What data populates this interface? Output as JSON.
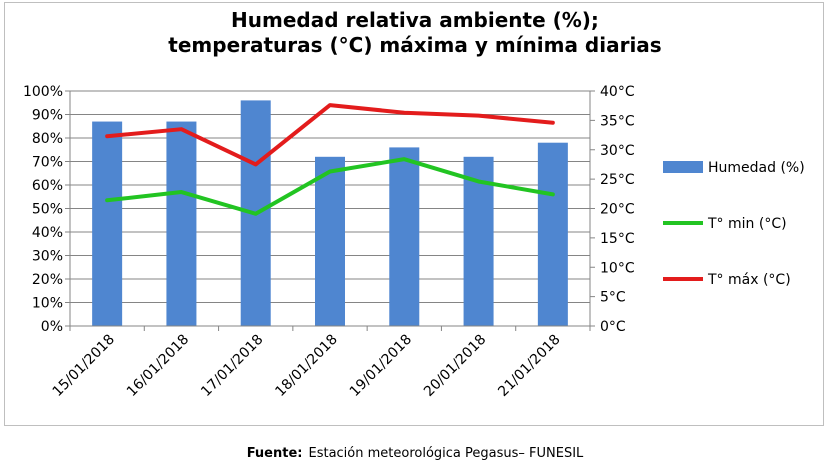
{
  "chart_data": {
    "type": "bar",
    "title_lines": [
      "Humedad relativa ambiente (%);",
      "temperaturas (°C) máxima y mínima diarias"
    ],
    "categories": [
      "15/01/2018",
      "16/01/2018",
      "17/01/2018",
      "18/01/2018",
      "19/01/2018",
      "20/01/2018",
      "21/01/2018"
    ],
    "y_left": {
      "ylim": [
        0,
        100
      ],
      "ticks": [
        "0%",
        "10%",
        "20%",
        "30%",
        "40%",
        "50%",
        "60%",
        "70%",
        "80%",
        "90%",
        "100%"
      ]
    },
    "y_right": {
      "ylim": [
        0,
        40
      ],
      "ticks": [
        "0°C",
        "5°C",
        "10°C",
        "15°C",
        "20°C",
        "25°C",
        "30°C",
        "35°C",
        "40°C"
      ]
    },
    "grid": true,
    "legend_position": "right",
    "series": [
      {
        "name": "Humedad (%)",
        "type": "bar",
        "axis": "left",
        "color": "#4f86d0",
        "values": [
          87,
          87,
          96,
          72,
          76,
          72,
          78
        ]
      },
      {
        "name": "T° min (°C)",
        "type": "line",
        "axis": "right",
        "color": "#22c422",
        "values": [
          21.4,
          22.8,
          19.1,
          26.3,
          28.4,
          24.6,
          22.4
        ]
      },
      {
        "name": "T° máx (°C)",
        "type": "line",
        "axis": "right",
        "color": "#e31c1c",
        "values": [
          32.3,
          33.5,
          27.5,
          37.6,
          36.3,
          35.8,
          34.6
        ]
      }
    ]
  },
  "source": {
    "label": "Fuente:",
    "text": "Estación meteorológica Pegasus– FUNESIL"
  }
}
